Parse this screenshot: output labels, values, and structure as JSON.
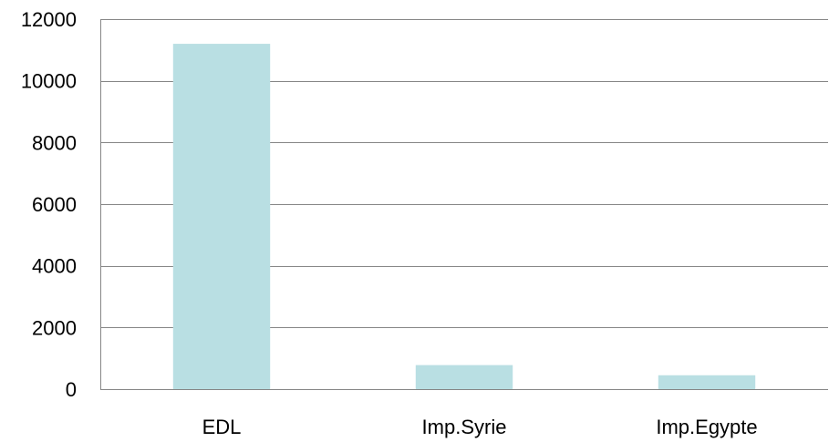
{
  "chart_data": {
    "type": "bar",
    "categories": [
      "EDL",
      "Imp.Syrie",
      "Imp.Egypte"
    ],
    "values": [
      11200,
      780,
      450
    ],
    "ylim": [
      0,
      12000
    ],
    "yticks": [
      0,
      2000,
      4000,
      6000,
      8000,
      10000,
      12000
    ],
    "grid": true,
    "legend": "none",
    "title": "",
    "xlabel": "",
    "ylabel": ""
  },
  "colors": {
    "bar": "#b9dfe3",
    "gridline": "#868686",
    "axis": "#868686",
    "text": "#000000"
  }
}
